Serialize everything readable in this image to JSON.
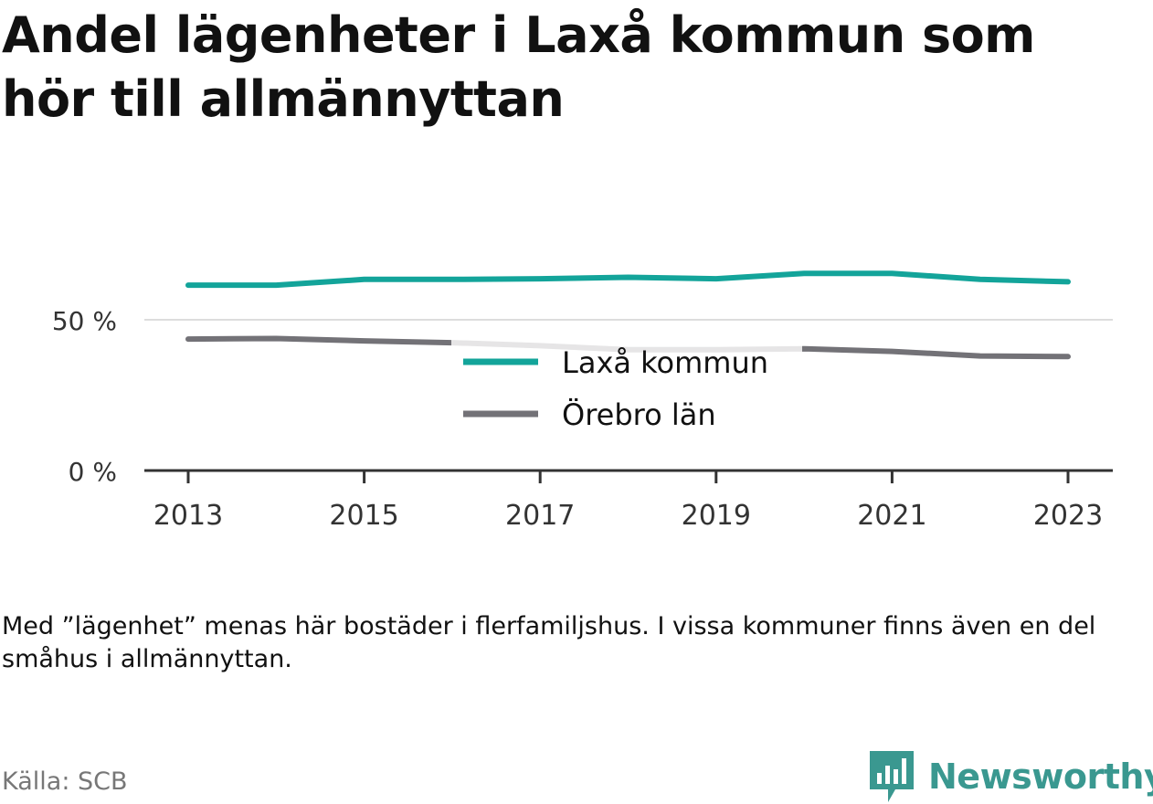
{
  "title": "Andel lägenheter i Laxå kommun som hör till allmännyttan",
  "note": "Med ”lägenhet” menas här bostäder i flerfamiljshus. I vissa kommuner finns även en del småhus i allmännyttan.",
  "source": "Källa: SCB",
  "brand": {
    "name": "Newsworthy",
    "icon": "bar-chart-speech-bubble-icon",
    "color": "#3a9890"
  },
  "chart_data": {
    "type": "line",
    "x": [
      2013,
      2014,
      2015,
      2016,
      2017,
      2018,
      2019,
      2020,
      2021,
      2022,
      2023
    ],
    "xticks": [
      2013,
      2015,
      2017,
      2019,
      2021,
      2023
    ],
    "xtick_labels": [
      "2013",
      "2015",
      "2017",
      "2019",
      "2021",
      "2023"
    ],
    "yticks": [
      0,
      50
    ],
    "ytick_labels": [
      "0 %",
      "50 %"
    ],
    "ylim": [
      0,
      70
    ],
    "grid": true,
    "legend_position": "center",
    "series": [
      {
        "name": "Laxå kommun",
        "color": "#13a49a",
        "values": [
          61.5,
          61.5,
          63.4,
          63.4,
          63.6,
          64.1,
          63.6,
          65.4,
          65.4,
          63.4,
          62.6
        ]
      },
      {
        "name": "Örebro län",
        "color": "#737277",
        "values": [
          43.6,
          43.8,
          43.0,
          42.4,
          41.4,
          40.1,
          40.1,
          40.4,
          39.5,
          38.0,
          37.8
        ]
      }
    ]
  }
}
